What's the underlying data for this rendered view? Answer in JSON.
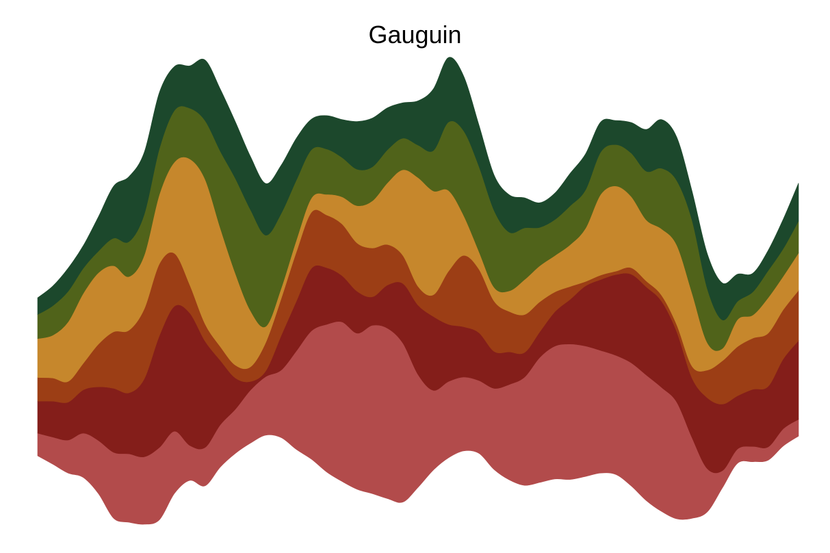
{
  "chart_data": {
    "type": "area",
    "style": "streamgraph",
    "title": "Gauguin",
    "xlabel": "",
    "ylabel": "",
    "grid": false,
    "legend": "none",
    "x": [
      0,
      1,
      2,
      3,
      4,
      5,
      6,
      7,
      8,
      9,
      10,
      11,
      12,
      13,
      14,
      15,
      16,
      17,
      18,
      19,
      20,
      21,
      22,
      23,
      24,
      25,
      26,
      27,
      28,
      29,
      30,
      31,
      32,
      33,
      34,
      35,
      36,
      37,
      38,
      39,
      40,
      41,
      42,
      43,
      44,
      45,
      46,
      47,
      48,
      49,
      50
    ],
    "baseline": [
      -0.89,
      -1.06,
      -1.24,
      -1.33,
      -1.66,
      -2.16,
      -2.24,
      -2.28,
      -2.19,
      -1.65,
      -1.39,
      -1.5,
      -1.12,
      -0.84,
      -0.63,
      -0.47,
      -0.52,
      -0.76,
      -0.96,
      -1.22,
      -1.41,
      -1.57,
      -1.66,
      -1.76,
      -1.83,
      -1.53,
      -1.18,
      -0.93,
      -0.79,
      -0.84,
      -1.17,
      -1.38,
      -1.49,
      -1.43,
      -1.36,
      -1.37,
      -1.31,
      -1.24,
      -1.27,
      -1.5,
      -1.8,
      -2.02,
      -2.17,
      -2.16,
      -2.03,
      -1.54,
      -1.04,
      -1.01,
      -0.98,
      -0.69,
      -0.49
    ],
    "series": [
      {
        "color": "#b24b4b",
        "values": [
          0.46,
          0.55,
          0.67,
          0.9,
          1.08,
          1.34,
          1.39,
          1.37,
          1.47,
          1.26,
          0.71,
          0.78,
          0.86,
          0.9,
          1.08,
          1.19,
          1.37,
          2.0,
          2.61,
          3.0,
          3.24,
          3.17,
          3.42,
          3.46,
          3.23,
          2.29,
          1.62,
          1.55,
          1.5,
          1.48,
          1.65,
          1.94,
          2.2,
          2.54,
          2.7,
          2.75,
          2.65,
          2.49,
          2.42,
          2.5,
          2.55,
          2.52,
          2.37,
          1.64,
          0.88,
          0.35,
          0.29,
          0.31,
          0.27,
          0.35,
          0.34
        ]
      },
      {
        "color": "#841e1a",
        "values": [
          0.65,
          0.73,
          0.77,
          0.88,
          1.09,
          1.3,
          1.24,
          1.58,
          2.27,
          2.54,
          2.69,
          2.16,
          1.31,
          0.63,
          0.17,
          0.12,
          0.7,
          1.01,
          1.27,
          1.15,
          0.94,
          0.85,
          0.58,
          0.88,
          1.21,
          1.41,
          1.5,
          1.16,
          1.02,
          0.97,
          0.75,
          0.66,
          0.5,
          0.52,
          0.7,
          0.91,
          1.22,
          1.44,
          1.64,
          1.8,
          1.79,
          1.75,
          1.43,
          1.21,
          1.44,
          1.35,
          1.08,
          1.16,
          1.23,
          1.42,
          1.6
        ]
      },
      {
        "color": "#9c3e15",
        "values": [
          0.48,
          0.47,
          0.42,
          0.54,
          0.87,
          1.15,
          1.27,
          1.42,
          1.46,
          1.07,
          0.57,
          0.35,
          0.28,
          0.26,
          0.3,
          0.58,
          0.75,
          1.0,
          1.14,
          1.07,
          1.05,
          0.98,
          0.99,
          0.82,
          0.57,
          0.38,
          0.44,
          1.08,
          1.45,
          1.29,
          1.02,
          0.82,
          0.77,
          0.61,
          0.4,
          0.26,
          0.09,
          0.09,
          0.07,
          0.13,
          0.12,
          0.12,
          0.14,
          0.24,
          0.56,
          0.88,
          1.0,
          1.04,
          1.08,
          1.0,
          1.02
        ]
      },
      {
        "color": "#c6872c",
        "values": [
          0.79,
          0.87,
          1.21,
          1.42,
          1.45,
          1.34,
          1.09,
          1.09,
          1.41,
          1.86,
          2.56,
          2.94,
          2.41,
          1.86,
          1.13,
          0.32,
          0.21,
          0.24,
          0.29,
          0.42,
          0.55,
          0.76,
          0.96,
          1.26,
          1.74,
          2.21,
          2.11,
          1.64,
          0.81,
          0.36,
          0.28,
          0.42,
          0.71,
          0.73,
          0.74,
          0.85,
          1.08,
          1.64,
          1.73,
          1.45,
          1.24,
          1.35,
          1.62,
          1.49,
          0.56,
          0.25,
          0.55,
          0.47,
          0.72,
          0.68,
          0.76
        ]
      },
      {
        "color": "#50631a",
        "values": [
          0.49,
          0.6,
          0.62,
          0.51,
          0.44,
          0.56,
          0.71,
          0.83,
          0.93,
          1.05,
          1.03,
          1.19,
          1.56,
          1.93,
          2.05,
          1.85,
          1.52,
          1.22,
          0.98,
          0.92,
          0.8,
          0.74,
          0.69,
          0.67,
          0.64,
          0.66,
          0.82,
          1.39,
          1.72,
          1.73,
          1.56,
          1.19,
          1.05,
          0.78,
          0.73,
          0.79,
          0.78,
          0.86,
          0.84,
          0.88,
          0.99,
          1.23,
          1.31,
          1.48,
          1.1,
          0.58,
          0.37,
          0.47,
          0.55,
          0.56,
          0.65
        ]
      },
      {
        "color": "#1c482c",
        "values": [
          0.34,
          0.4,
          0.47,
          0.46,
          0.7,
          1.06,
          1.32,
          1.26,
          1.14,
          0.89,
          0.86,
          1.23,
          1.26,
          1.15,
          1.08,
          1.05,
          0.98,
          0.85,
          0.62,
          0.68,
          0.77,
          0.97,
          0.99,
          0.85,
          0.72,
          0.9,
          1.25,
          1.31,
          1.11,
          0.84,
          0.72,
          0.76,
          0.61,
          0.5,
          0.54,
          0.66,
          0.73,
          0.61,
          0.49,
          0.62,
          0.85,
          0.99,
          0.88,
          0.59,
          0.71,
          0.75,
          0.55,
          0.38,
          0.41,
          0.6,
          0.77
        ]
      }
    ]
  }
}
